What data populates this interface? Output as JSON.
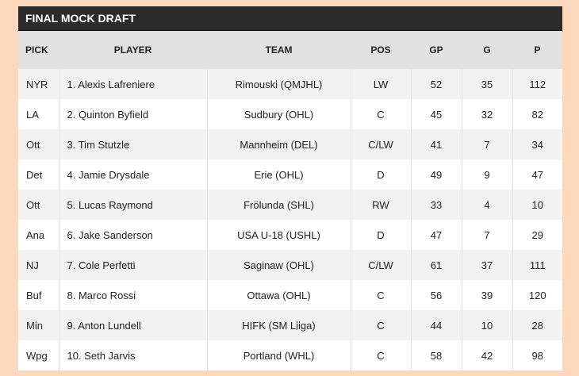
{
  "title": "FINAL MOCK DRAFT",
  "columns": {
    "pick": "PICK",
    "player": "PLAYER",
    "team": "TEAM",
    "pos": "POS",
    "gp": "GP",
    "g": "G",
    "p": "P"
  },
  "rows": [
    {
      "pick": "NYR",
      "player": "1. Alexis Lafreniere",
      "team": "Rimouski (QMJHL)",
      "pos": "LW",
      "gp": "52",
      "g": "35",
      "p": "112"
    },
    {
      "pick": "LA",
      "player": "2. Quinton Byfield",
      "team": "Sudbury (OHL)",
      "pos": "C",
      "gp": "45",
      "g": "32",
      "p": "82"
    },
    {
      "pick": "Ott",
      "player": "3. Tim Stutzle",
      "team": "Mannheim (DEL)",
      "pos": "C/LW",
      "gp": "41",
      "g": "7",
      "p": "34"
    },
    {
      "pick": "Det",
      "player": "4. Jamie Drysdale",
      "team": "Erie (OHL)",
      "pos": "D",
      "gp": "49",
      "g": "9",
      "p": "47"
    },
    {
      "pick": "Ott",
      "player": "5. Lucas Raymond",
      "team": "Frölunda (SHL)",
      "pos": "RW",
      "gp": "33",
      "g": "4",
      "p": "10"
    },
    {
      "pick": "Ana",
      "player": "6. Jake Sanderson",
      "team": "USA U-18 (USHL)",
      "pos": "D",
      "gp": "47",
      "g": "7",
      "p": "29"
    },
    {
      "pick": "NJ",
      "player": "7. Cole Perfetti",
      "team": "Saginaw (OHL)",
      "pos": "C/LW",
      "gp": "61",
      "g": "37",
      "p": "111"
    },
    {
      "pick": "Buf",
      "player": "8. Marco Rossi",
      "team": "Ottawa (OHL)",
      "pos": "C",
      "gp": "56",
      "g": "39",
      "p": "120"
    },
    {
      "pick": "Min",
      "player": "9. Anton Lundell",
      "team": "HIFK (SM Liiga)",
      "pos": "C",
      "gp": "44",
      "g": "10",
      "p": "28"
    },
    {
      "pick": "Wpg",
      "player": "10. Seth Jarvis",
      "team": "Portland (WHL)",
      "pos": "C",
      "gp": "58",
      "g": "42",
      "p": "98"
    }
  ]
}
